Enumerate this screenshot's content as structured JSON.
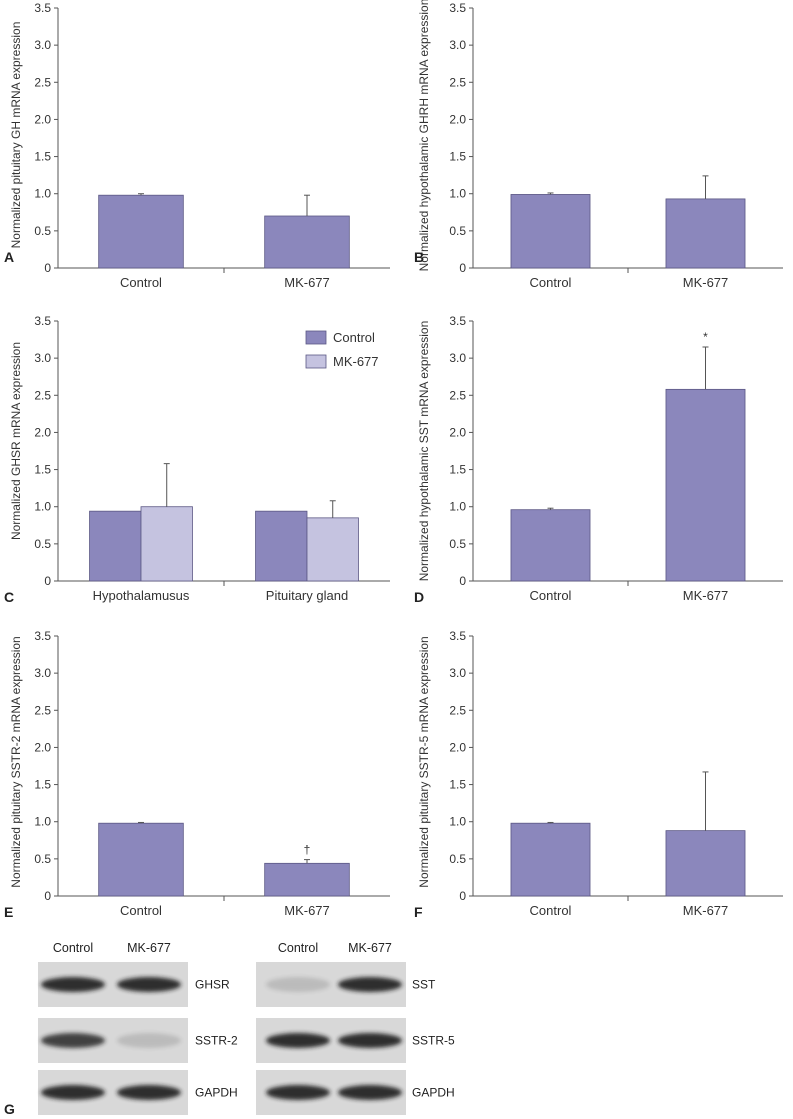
{
  "colors": {
    "control": "#8b87bc",
    "mk677": "#c5c3e0",
    "bar_stroke": "#5b5784",
    "axis": "#555555",
    "blot_bg": "#d8d8d8",
    "band": "#1c1c1c"
  },
  "chart_data": [
    {
      "panel": "A",
      "type": "bar",
      "ylabel": "Normalized pituitary GH mRNA expression",
      "categories": [
        "Control",
        "MK-677"
      ],
      "values": [
        0.98,
        0.7
      ],
      "errors": [
        0.02,
        0.28
      ],
      "annotations": [
        "",
        ""
      ],
      "ylim": [
        0,
        3.5
      ],
      "yticks": [
        "0",
        "0.5",
        "1.0",
        "1.5",
        "2.0",
        "2.5",
        "3.0",
        "3.5"
      ]
    },
    {
      "panel": "B",
      "type": "bar",
      "ylabel": "Normalized hypothalamic GHRH mRNA expression",
      "categories": [
        "Control",
        "MK-677"
      ],
      "values": [
        0.99,
        0.93
      ],
      "errors": [
        0.02,
        0.31
      ],
      "annotations": [
        "",
        ""
      ],
      "ylim": [
        0,
        3.5
      ],
      "yticks": [
        "0",
        "0.5",
        "1.0",
        "1.5",
        "2.0",
        "2.5",
        "3.0",
        "3.5"
      ]
    },
    {
      "panel": "C",
      "type": "bar",
      "ylabel": "Normalized GHSR mRNA expression",
      "categories": [
        "Hypothalamusus",
        "Pituitary gland"
      ],
      "series": [
        {
          "name": "Control",
          "values": [
            0.94,
            0.94
          ],
          "errors": [
            0.0,
            0.0
          ]
        },
        {
          "name": "MK-677",
          "values": [
            1.0,
            0.85
          ],
          "errors": [
            0.58,
            0.23
          ]
        }
      ],
      "legend": [
        "Control",
        "MK-677"
      ],
      "legend_position": "top-right",
      "ylim": [
        0,
        3.5
      ],
      "yticks": [
        "0",
        "0.5",
        "1.0",
        "1.5",
        "2.0",
        "2.5",
        "3.0",
        "3.5"
      ]
    },
    {
      "panel": "D",
      "type": "bar",
      "ylabel": "Normalized hypothalamic SST mRNA expression",
      "categories": [
        "Control",
        "MK-677"
      ],
      "values": [
        0.96,
        2.58
      ],
      "errors": [
        0.02,
        0.57
      ],
      "annotations": [
        "",
        "*"
      ],
      "ylim": [
        0,
        3.5
      ],
      "yticks": [
        "0",
        "0.5",
        "1.0",
        "1.5",
        "2.0",
        "2.5",
        "3.0",
        "3.5"
      ]
    },
    {
      "panel": "E",
      "type": "bar",
      "ylabel": "Normalized pituitary SSTR-2 mRNA expression",
      "categories": [
        "Control",
        "MK-677"
      ],
      "values": [
        0.98,
        0.44
      ],
      "errors": [
        0.01,
        0.05
      ],
      "annotations": [
        "",
        "†"
      ],
      "ylim": [
        0,
        3.5
      ],
      "yticks": [
        "0",
        "0.5",
        "1.0",
        "1.5",
        "2.0",
        "2.5",
        "3.0",
        "3.5"
      ]
    },
    {
      "panel": "F",
      "type": "bar",
      "ylabel": "Normalized pituitary SSTR-5 mRNA expression",
      "categories": [
        "Control",
        "MK-677"
      ],
      "values": [
        0.98,
        0.88
      ],
      "errors": [
        0.01,
        0.79
      ],
      "annotations": [
        "",
        ""
      ],
      "ylim": [
        0,
        3.5
      ],
      "yticks": [
        "0",
        "0.5",
        "1.0",
        "1.5",
        "2.0",
        "2.5",
        "3.0",
        "3.5"
      ]
    }
  ],
  "western_blot": {
    "panel": "G",
    "left": {
      "headers": [
        "Control",
        "MK-677"
      ],
      "rows": [
        {
          "label": "GHSR",
          "bands": [
            0.9,
            0.9
          ]
        },
        {
          "label": "SSTR-2",
          "bands": [
            0.8,
            0.15
          ]
        },
        {
          "label": "GAPDH",
          "bands": [
            0.9,
            0.9
          ]
        }
      ]
    },
    "right": {
      "headers": [
        "Control",
        "MK-677"
      ],
      "rows": [
        {
          "label": "SST",
          "bands": [
            0.15,
            0.9
          ]
        },
        {
          "label": "SSTR-5",
          "bands": [
            0.9,
            0.9
          ]
        },
        {
          "label": "GAPDH",
          "bands": [
            0.9,
            0.9
          ]
        }
      ]
    }
  }
}
